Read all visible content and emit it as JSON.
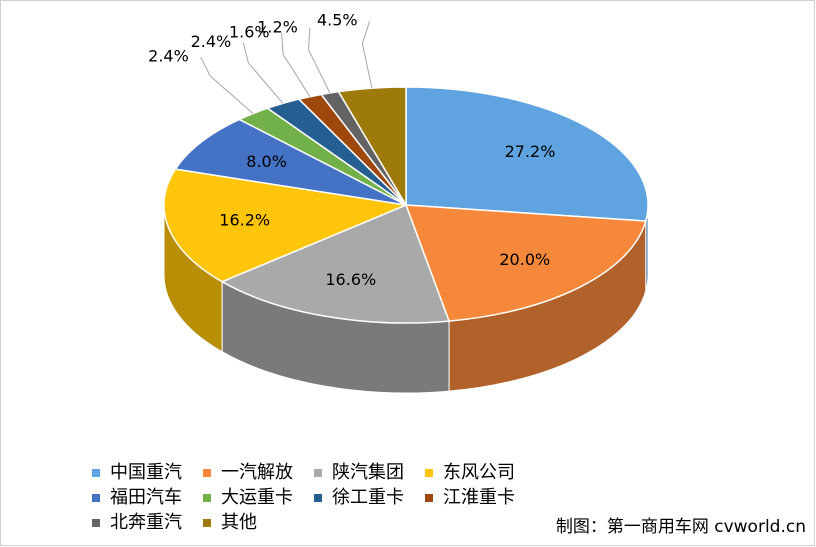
{
  "chart_data": {
    "type": "pie",
    "categories": [
      "中国重汽",
      "一汽解放",
      "陕汽集团",
      "东风公司",
      "福田汽车",
      "大运重卡",
      "徐工重卡",
      "江淮重卡",
      "北奔重汽",
      "其他"
    ],
    "values": [
      27.2,
      20.0,
      16.6,
      16.2,
      8.0,
      2.4,
      2.4,
      1.6,
      1.2,
      4.5
    ],
    "value_labels": [
      "27.2%",
      "20.0%",
      "16.6%",
      "16.2%",
      "8.0%",
      "2.4%",
      "2.4%",
      "1.6%",
      "1.2%",
      "4.5%"
    ],
    "colors": [
      "#5fa3e0",
      "#f5883a",
      "#a9a9a9",
      "#ffc50a",
      "#4472c4",
      "#72b04a",
      "#255e91",
      "#9e480e",
      "#636363",
      "#9e7a0a"
    ],
    "note": "制图：第一商用车网 cvworld.cn"
  }
}
